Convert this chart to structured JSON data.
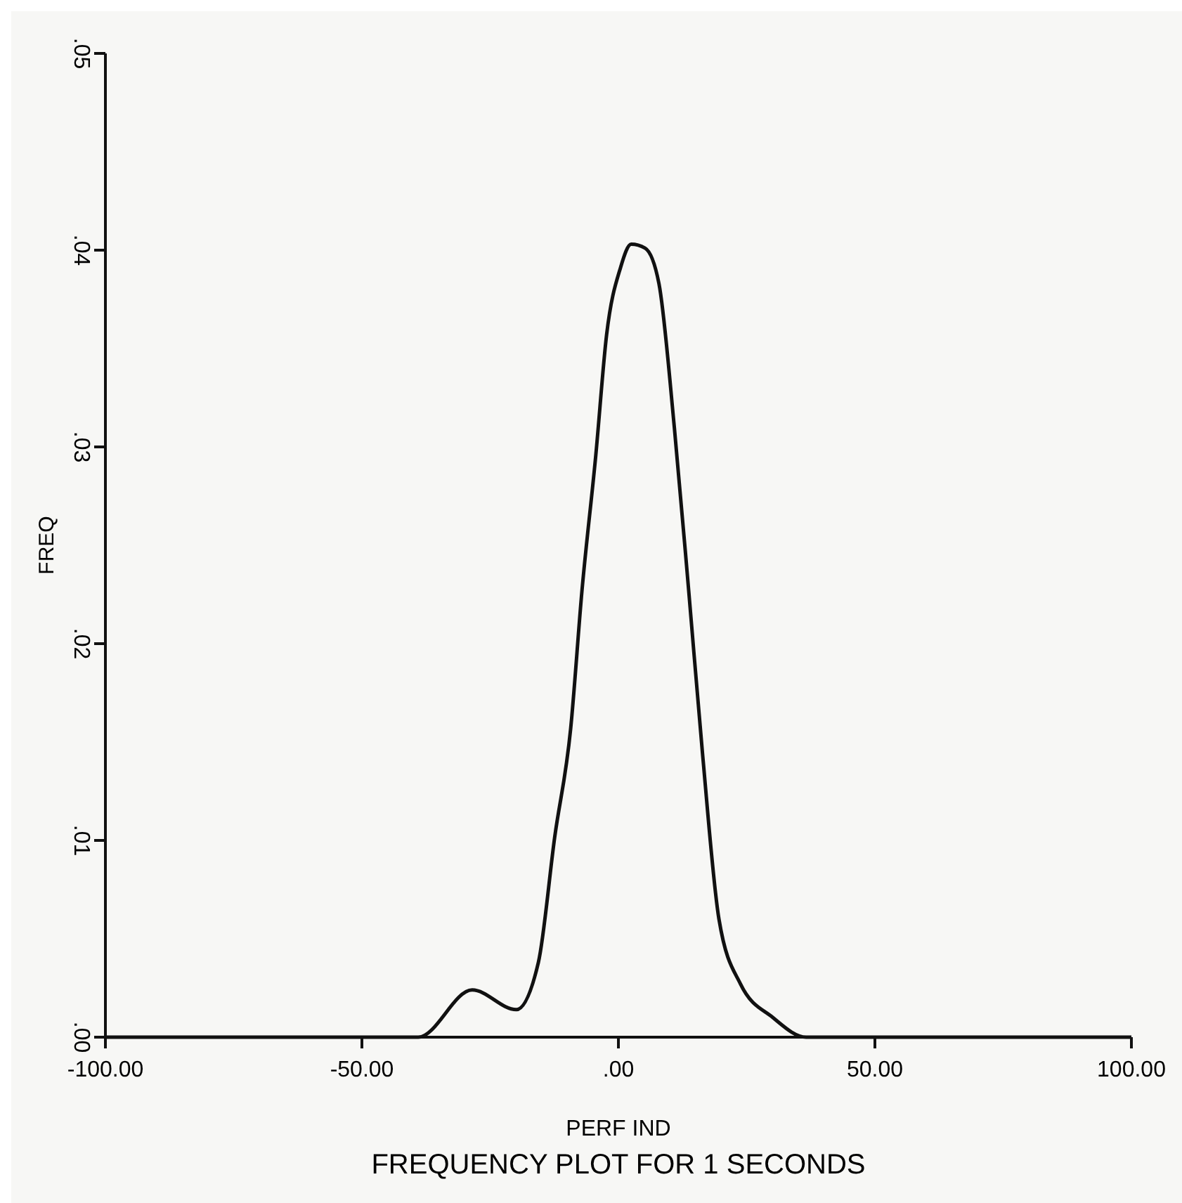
{
  "chart_data": {
    "type": "line",
    "title": "FREQUENCY PLOT FOR 1 SECONDS",
    "xlabel": "PERF IND",
    "ylabel": "FREQ",
    "xlim": [
      -100,
      100
    ],
    "xticks": [
      {
        "value": -100,
        "label": "-100.00"
      },
      {
        "value": -50,
        "label": "-50.00"
      },
      {
        "value": 0,
        "label": ".00"
      },
      {
        "value": 50,
        "label": "50.00"
      },
      {
        "value": 100,
        "label": "100.00"
      }
    ],
    "ylim": [
      0,
      0.05
    ],
    "yticks": [
      {
        "value": 0,
        "label": ".00"
      },
      {
        "value": 0.01,
        "label": ".01"
      },
      {
        "value": 0.02,
        "label": ".02"
      },
      {
        "value": 0.03,
        "label": ".03"
      },
      {
        "value": 0.04,
        "label": ".04"
      },
      {
        "value": 0.05,
        "label": ".05"
      }
    ],
    "marker": "none",
    "line_style": "solid",
    "series": [
      {
        "color": "#111111",
        "x": [
          -100,
          -39,
          -28.5,
          -19.9,
          -15.6,
          -12.4,
          -9.3,
          -7.1,
          -4.4,
          -2.3,
          0.4,
          2.5,
          5.2,
          7.9,
          10.9,
          13.7,
          16.4,
          19.6,
          23.8,
          30.1,
          36.6,
          100
        ],
        "values": [
          0,
          0,
          0.0024,
          0.0014,
          0.0038,
          0.0102,
          0.0157,
          0.0227,
          0.0296,
          0.0357,
          0.0391,
          0.0403,
          0.0401,
          0.0383,
          0.031,
          0.0227,
          0.0144,
          0.006,
          0.0027,
          0.001,
          0,
          0
        ]
      }
    ]
  }
}
